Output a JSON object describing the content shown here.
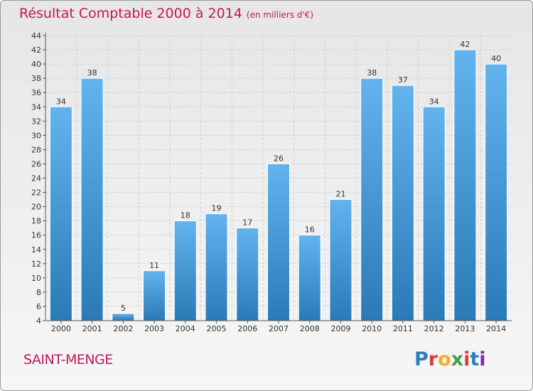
{
  "header": {
    "title": "Résultat Comptable 2000 à 2014",
    "subtitle": "(en milliers d'€)"
  },
  "footer": {
    "commune": "SAINT-MENGE",
    "logo": "Proxiti"
  },
  "colors": {
    "title": "#c2185b",
    "bar_light": "#62b3ee",
    "bar_dark": "#2a7ab8",
    "axis": "#555555",
    "grid": "#cfcfcf"
  },
  "chart_data": {
    "type": "bar",
    "title": "Résultat Comptable 2000 à 2014",
    "subtitle": "(en milliers d'€)",
    "xlabel": "",
    "ylabel": "",
    "categories": [
      "2000",
      "2001",
      "2002",
      "2003",
      "2004",
      "2005",
      "2006",
      "2007",
      "2008",
      "2009",
      "2010",
      "2011",
      "2012",
      "2013",
      "2014"
    ],
    "values": [
      34,
      38,
      5,
      11,
      18,
      19,
      17,
      26,
      16,
      21,
      38,
      37,
      34,
      42,
      40
    ],
    "ylim": [
      4,
      44
    ],
    "yticks": [
      4,
      6,
      8,
      10,
      12,
      14,
      16,
      18,
      20,
      22,
      24,
      26,
      28,
      30,
      32,
      34,
      36,
      38,
      40,
      42,
      44
    ],
    "grid": true,
    "legend": "none"
  }
}
